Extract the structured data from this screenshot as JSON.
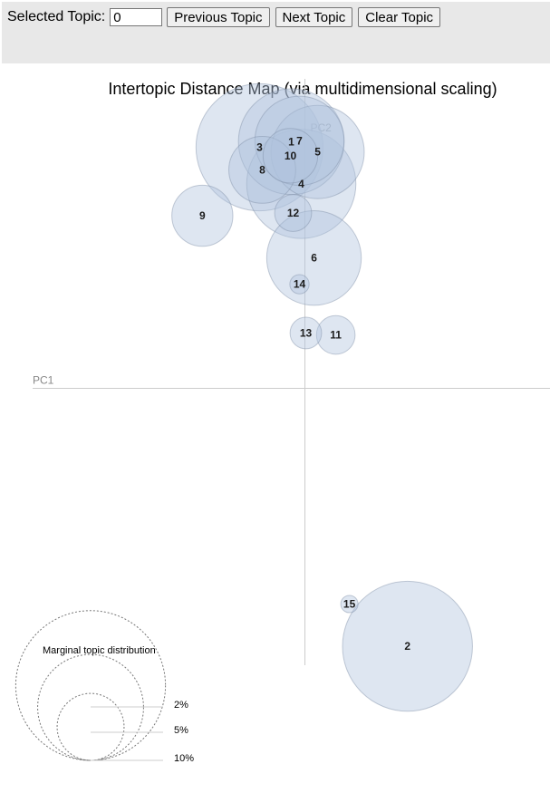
{
  "toolbar": {
    "selected_label": "Selected Topic:",
    "selected_value": "0",
    "prev_label": "Previous Topic",
    "next_label": "Next Topic",
    "clear_label": "Clear Topic"
  },
  "chart_data": {
    "type": "scatter",
    "title": "Intertopic Distance Map (via multidimensional scaling)",
    "xlabel": "PC1",
    "ylabel": "PC2",
    "xlim": [
      -0.3,
      0.27
    ],
    "ylim": [
      -0.33,
      0.33
    ],
    "bubble_fill": "#b0c4de",
    "bubble_stroke": "#7f8fa6",
    "topics": [
      {
        "label": "1",
        "x": -0.015,
        "y": 0.263,
        "size": 4.5
      },
      {
        "label": "2",
        "x": 0.113,
        "y": -0.275,
        "size": 6.8
      },
      {
        "label": "3",
        "x": -0.05,
        "y": 0.257,
        "size": 6.5
      },
      {
        "label": "4",
        "x": -0.004,
        "y": 0.218,
        "size": 4.8
      },
      {
        "label": "5",
        "x": 0.014,
        "y": 0.252,
        "size": 3.5
      },
      {
        "label": "6",
        "x": 0.01,
        "y": 0.139,
        "size": 3.6
      },
      {
        "label": "7",
        "x": -0.006,
        "y": 0.264,
        "size": 3.2
      },
      {
        "label": "8",
        "x": -0.047,
        "y": 0.233,
        "size": 1.8
      },
      {
        "label": "9",
        "x": -0.113,
        "y": 0.184,
        "size": 1.5
      },
      {
        "label": "10",
        "x": -0.016,
        "y": 0.248,
        "size": 1.2
      },
      {
        "label": "11",
        "x": 0.034,
        "y": 0.057,
        "size": 0.6
      },
      {
        "label": "12",
        "x": -0.013,
        "y": 0.187,
        "size": 0.55
      },
      {
        "label": "13",
        "x": 0.001,
        "y": 0.059,
        "size": 0.4
      },
      {
        "label": "14",
        "x": -0.006,
        "y": 0.111,
        "size": 0.15
      },
      {
        "label": "15",
        "x": 0.049,
        "y": -0.23,
        "size": 0.12
      }
    ],
    "legend": {
      "title": "Marginal topic distribution",
      "items": [
        {
          "label": "2%",
          "size": 2
        },
        {
          "label": "5%",
          "size": 5
        },
        {
          "label": "10%",
          "size": 10
        }
      ]
    }
  }
}
